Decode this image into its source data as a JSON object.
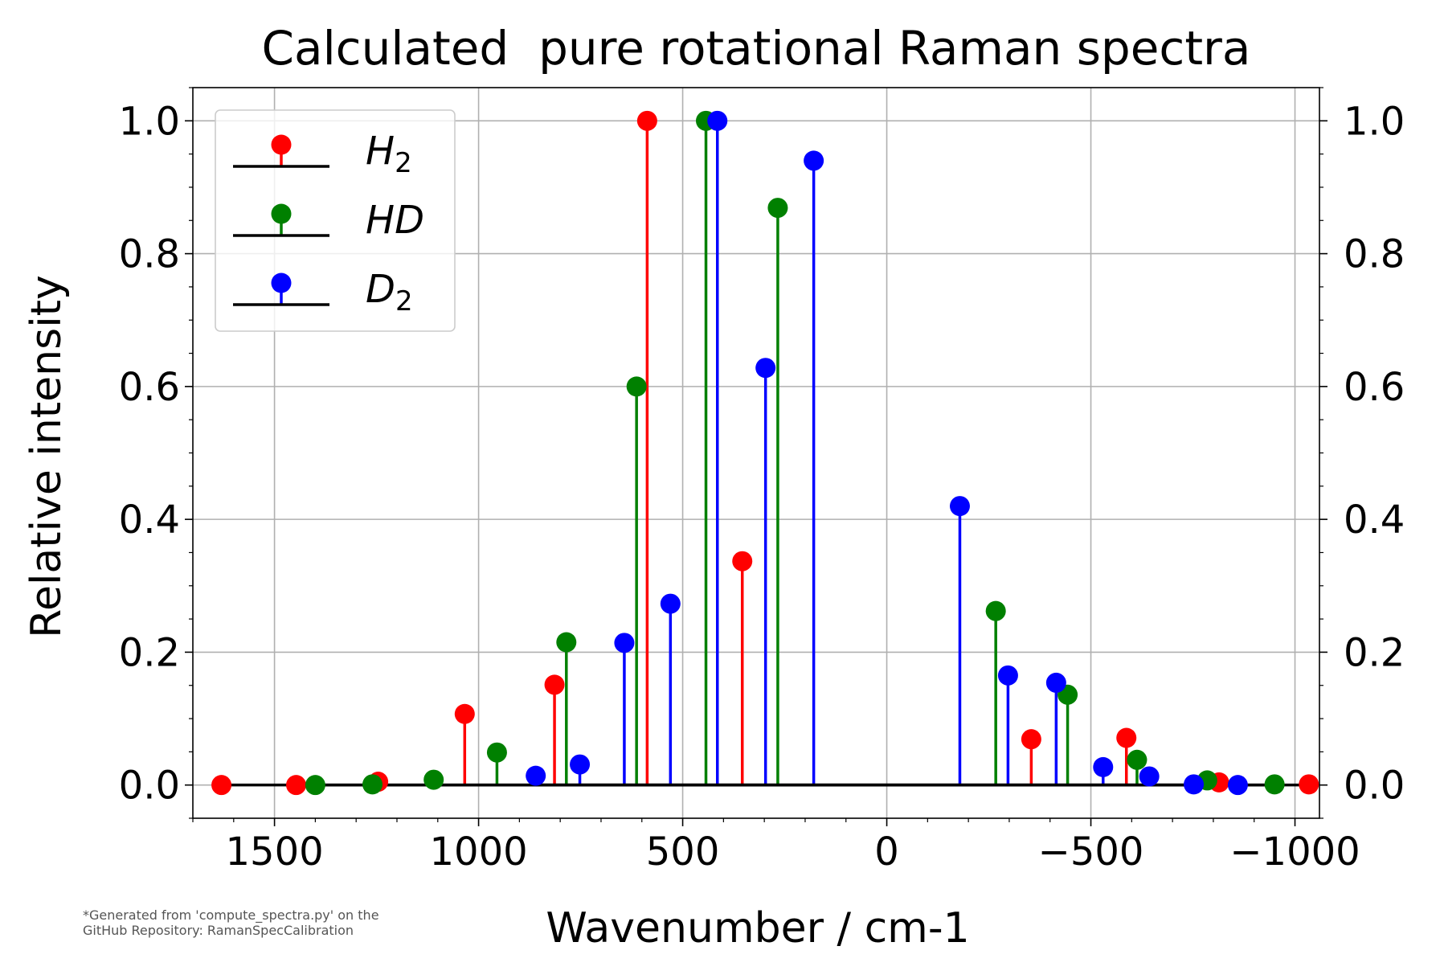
{
  "chart_data": {
    "type": "stem",
    "title": "Calculated  pure rotational Raman spectra",
    "xlabel": "Wavenumber / cm-1",
    "ylabel": "Relative intensity",
    "xlim": [
      1700,
      -1060
    ],
    "ylim": [
      -0.05,
      1.05
    ],
    "x_ticks": [
      1500,
      1000,
      500,
      0,
      -500,
      -1000
    ],
    "x_tick_labels": [
      "1500",
      "1000",
      "500",
      "0",
      "−500",
      "−1000"
    ],
    "y_ticks": [
      0.0,
      0.2,
      0.4,
      0.6,
      0.8,
      1.0
    ],
    "y_tick_labels": [
      "0.0",
      "0.2",
      "0.4",
      "0.6",
      "0.8",
      "1.0"
    ],
    "right_y_axis": true,
    "grid": true,
    "legend_position": "top-left",
    "series": [
      {
        "name": "H",
        "subscript": "2",
        "color": "#ff0000",
        "baseline": [
          1640,
          -1030
        ],
        "x": [
          1630,
          1447,
          1246,
          1034,
          814,
          587,
          354,
          -354,
          -587,
          -814,
          -1034
        ],
        "y": [
          0.0,
          0.0,
          0.005,
          0.107,
          0.151,
          1.0,
          0.337,
          0.069,
          0.071,
          0.004,
          0.001
        ]
      },
      {
        "name": "HD",
        "subscript": "",
        "color": "#008000",
        "baseline": [
          1410,
          -950
        ],
        "x": [
          1400,
          1260,
          1110,
          955,
          785,
          613,
          443,
          267,
          -267,
          -443,
          -613,
          -785,
          -950
        ],
        "y": [
          0.0,
          0.001,
          0.008,
          0.049,
          0.215,
          0.6,
          1.0,
          0.869,
          0.262,
          0.136,
          0.038,
          0.007,
          0.001
        ]
      },
      {
        "name": "D",
        "subscript": "2",
        "color": "#0000ff",
        "baseline": [
          860,
          -860
        ],
        "x": [
          860,
          752,
          643,
          530,
          415,
          297,
          179,
          -179,
          -297,
          -415,
          -530,
          -643,
          -752,
          -860
        ],
        "y": [
          0.014,
          0.031,
          0.214,
          0.273,
          1.0,
          0.628,
          0.94,
          0.42,
          0.165,
          0.154,
          0.027,
          0.013,
          0.001,
          0.0
        ]
      }
    ]
  },
  "footnote": {
    "line1": "*Generated from 'compute_spectra.py' on the",
    "line2": "GitHub Repository: RamanSpecCalibration"
  }
}
